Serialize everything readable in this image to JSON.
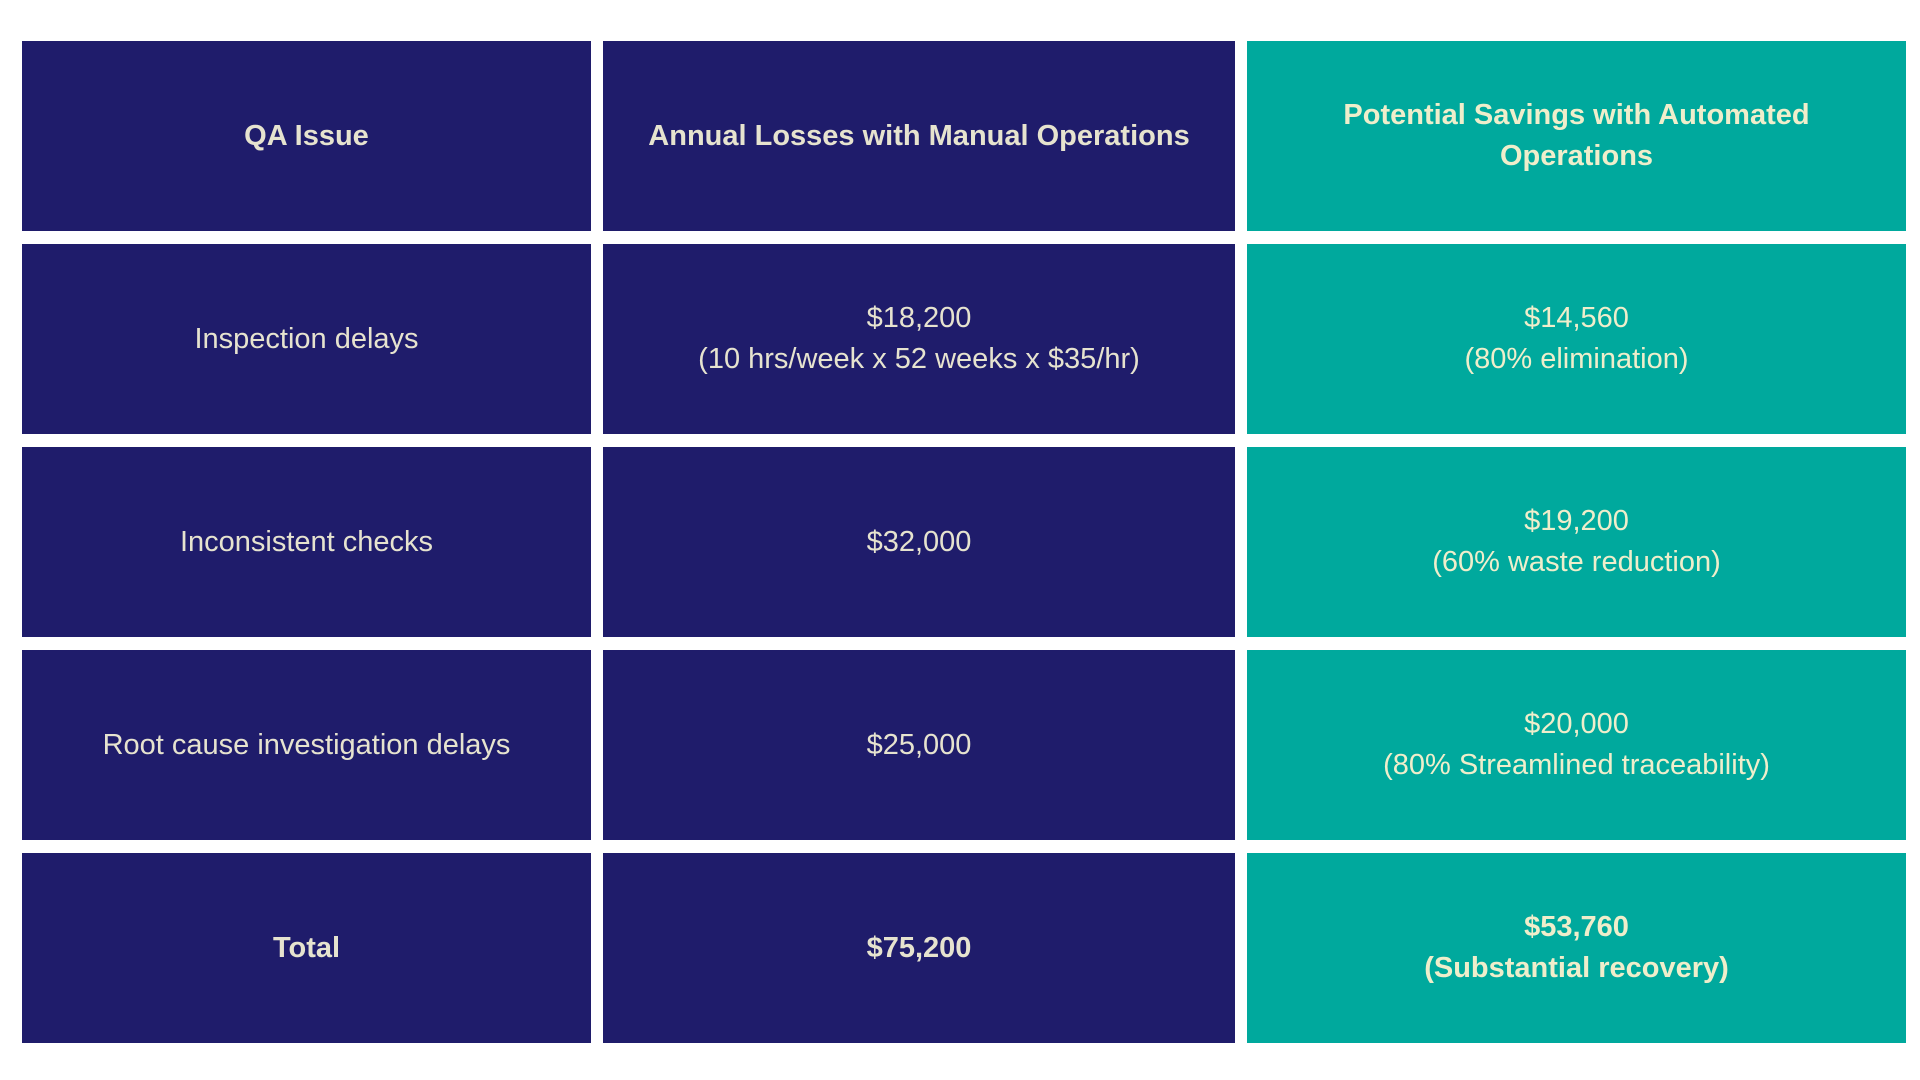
{
  "header": {
    "issue": "QA Issue",
    "losses": "Annual Losses with Manual Operations",
    "savings": "Potential Savings with Automated Operations"
  },
  "rows": [
    {
      "issue": "Inspection delays",
      "loss_value": "$18,200",
      "loss_note": "(10 hrs/week x 52 weeks x $35/hr)",
      "saving_value": "$14,560",
      "saving_note": "(80% elimination)"
    },
    {
      "issue": "Inconsistent checks",
      "loss_value": "$32,000",
      "loss_note": "",
      "saving_value": "$19,200",
      "saving_note": "(60% waste reduction)"
    },
    {
      "issue": "Root cause investigation delays",
      "loss_value": "$25,000",
      "loss_note": "",
      "saving_value": "$20,000",
      "saving_note": "(80% Streamlined traceability)"
    }
  ],
  "total": {
    "label": "Total",
    "loss_value": "$75,200",
    "saving_value": "$53,760",
    "saving_note": "(Substantial recovery)"
  },
  "colors": {
    "navy": "#1f1c6b",
    "teal": "#00a99d",
    "text_light": "#e6e3cf"
  }
}
